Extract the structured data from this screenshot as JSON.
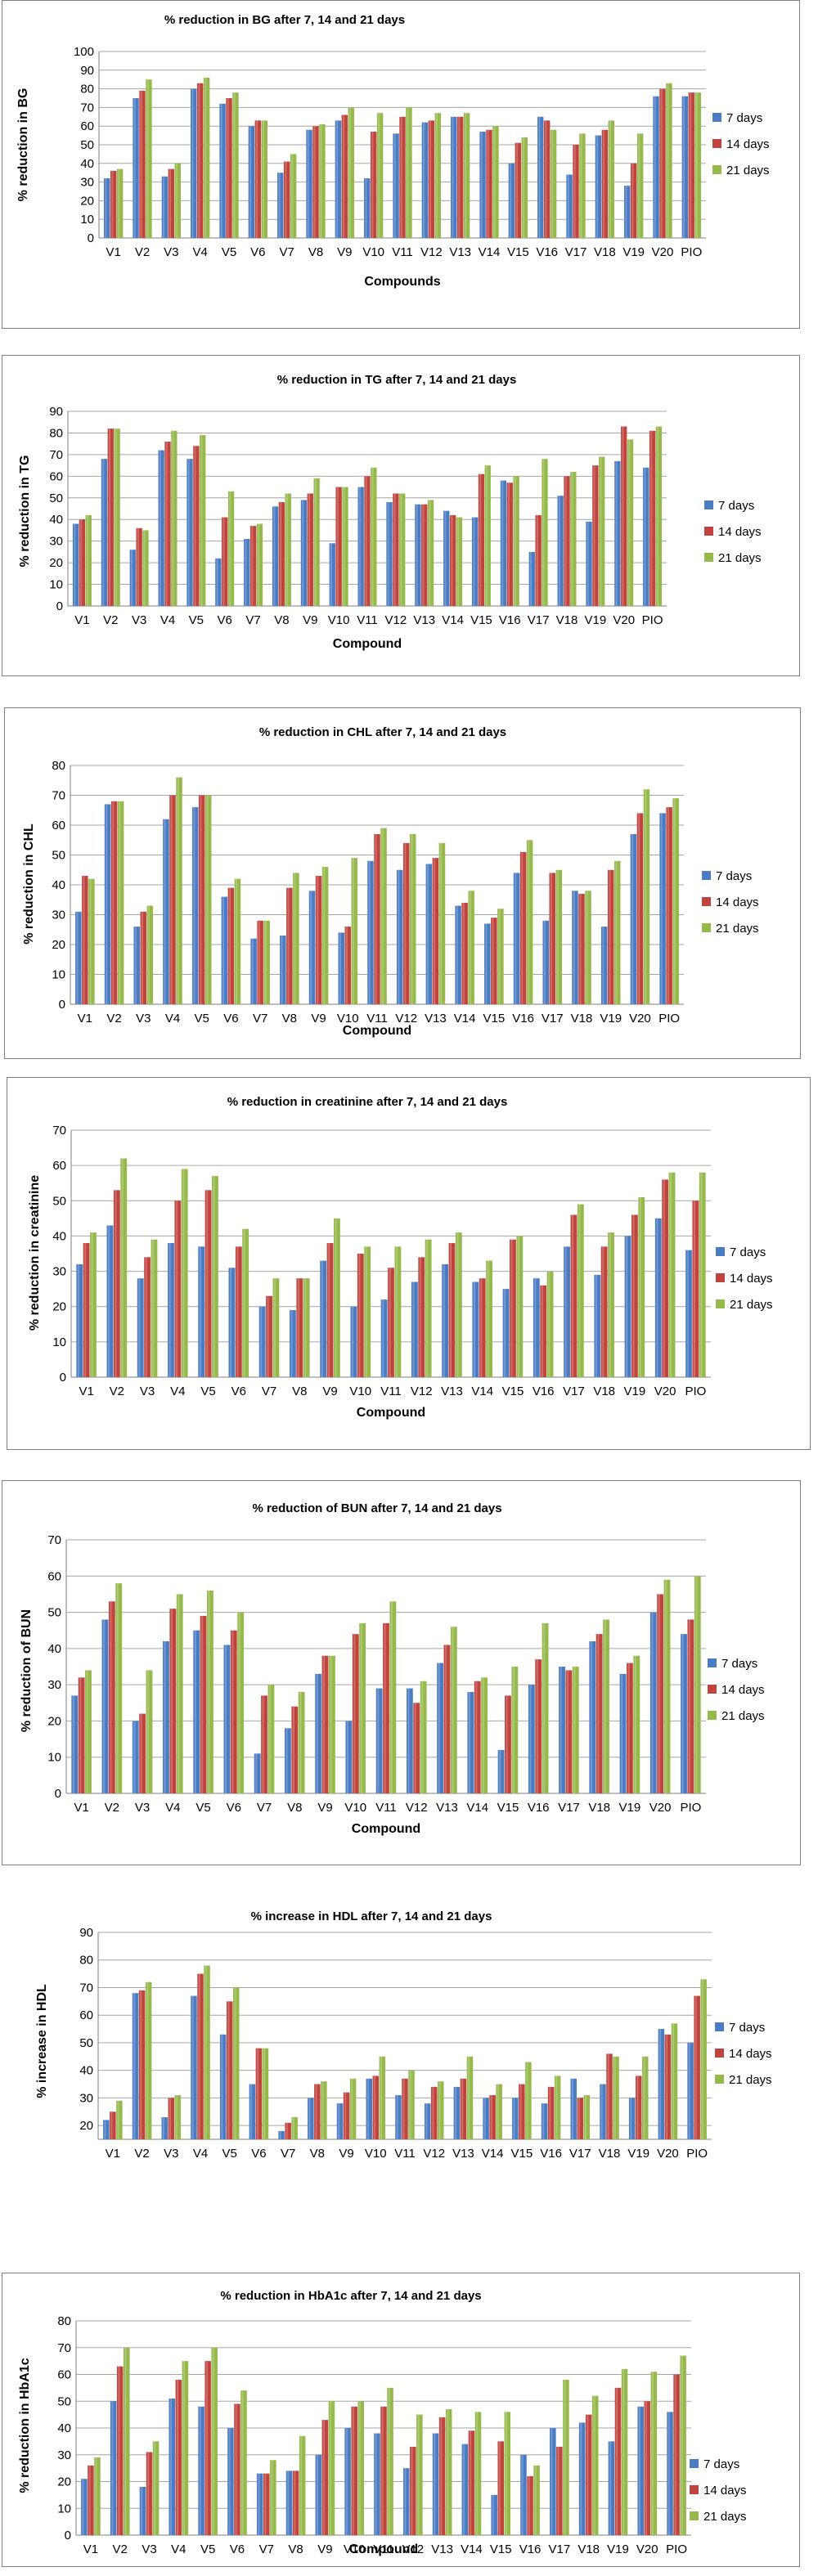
{
  "legend": [
    "7 days",
    "14 days",
    "21 days"
  ],
  "colors": {
    "series_7": "#4a7cc3",
    "series_14": "#c0433e",
    "series_21": "#95b94b"
  },
  "chart_data": [
    {
      "type": "bar",
      "title": "% reduction in BG after 7, 14 and 21 days",
      "xlabel": "Compounds",
      "ylabel": "% reduction in BG",
      "ylim": [
        0,
        100
      ],
      "ystep": 10,
      "legend_position": "right",
      "categories": [
        "V1",
        "V2",
        "V3",
        "V4",
        "V5",
        "V6",
        "V7",
        "V8",
        "V9",
        "V10",
        "V11",
        "V12",
        "V13",
        "V14",
        "V15",
        "V16",
        "V17",
        "V18",
        "V19",
        "V20",
        "PIO"
      ],
      "series": [
        {
          "name": "7 days",
          "values": [
            32,
            75,
            33,
            80,
            72,
            60,
            35,
            58,
            63,
            32,
            56,
            62,
            65,
            57,
            40,
            65,
            34,
            55,
            28,
            76,
            76
          ]
        },
        {
          "name": "14 days",
          "values": [
            36,
            79,
            37,
            83,
            75,
            63,
            41,
            60,
            66,
            57,
            65,
            63,
            65,
            58,
            51,
            63,
            50,
            58,
            40,
            80,
            78
          ]
        },
        {
          "name": "21 days",
          "values": [
            37,
            85,
            40,
            86,
            78,
            63,
            45,
            61,
            70,
            67,
            70,
            67,
            67,
            60,
            54,
            58,
            56,
            63,
            56,
            83,
            78
          ]
        }
      ]
    },
    {
      "type": "bar",
      "title": "% reduction in TG after 7, 14 and 21 days",
      "xlabel": "Compound",
      "ylabel": "% reduction in TG",
      "ylim": [
        0,
        90
      ],
      "ystep": 10,
      "legend_position": "right",
      "categories": [
        "V1",
        "V2",
        "V3",
        "V4",
        "V5",
        "V6",
        "V7",
        "V8",
        "V9",
        "V10",
        "V11",
        "V12",
        "V13",
        "V14",
        "V15",
        "V16",
        "V17",
        "V18",
        "V19",
        "V20",
        "PIO"
      ],
      "series": [
        {
          "name": "7 days",
          "values": [
            38,
            68,
            26,
            72,
            68,
            22,
            31,
            46,
            49,
            29,
            55,
            48,
            47,
            44,
            41,
            58,
            25,
            51,
            39,
            67,
            64
          ]
        },
        {
          "name": "14 days",
          "values": [
            40,
            82,
            36,
            76,
            74,
            41,
            37,
            48,
            52,
            55,
            60,
            52,
            47,
            42,
            61,
            57,
            42,
            60,
            65,
            83,
            81
          ]
        },
        {
          "name": "21 days",
          "values": [
            42,
            82,
            35,
            81,
            79,
            53,
            38,
            52,
            59,
            55,
            64,
            52,
            49,
            41,
            65,
            60,
            68,
            62,
            69,
            77,
            83
          ]
        }
      ]
    },
    {
      "type": "bar",
      "title": "% reduction in CHL after 7, 14 and 21 days",
      "xlabel": "Compound",
      "ylabel": "% reduction in CHL",
      "ylim": [
        0,
        80
      ],
      "ystep": 10,
      "legend_position": "right",
      "categories": [
        "V1",
        "V2",
        "V3",
        "V4",
        "V5",
        "V6",
        "V7",
        "V8",
        "V9",
        "V10",
        "V11",
        "V12",
        "V13",
        "V14",
        "V15",
        "V16",
        "V17",
        "V18",
        "V19",
        "V20",
        "PIO"
      ],
      "series": [
        {
          "name": "7 days",
          "values": [
            31,
            67,
            26,
            62,
            66,
            36,
            22,
            23,
            38,
            24,
            48,
            45,
            47,
            33,
            27,
            44,
            28,
            38,
            26,
            57,
            64
          ]
        },
        {
          "name": "14 days",
          "values": [
            43,
            68,
            31,
            70,
            70,
            39,
            28,
            39,
            43,
            26,
            57,
            54,
            49,
            34,
            29,
            51,
            44,
            37,
            45,
            64,
            66
          ]
        },
        {
          "name": "21 days",
          "values": [
            42,
            68,
            33,
            76,
            70,
            42,
            28,
            44,
            46,
            49,
            59,
            57,
            54,
            38,
            32,
            55,
            45,
            38,
            48,
            72,
            69
          ]
        }
      ]
    },
    {
      "type": "bar",
      "title": "% reduction in creatinine after 7, 14 and 21 days",
      "xlabel": "Compound",
      "ylabel": "% reduction in creatinine",
      "ylim": [
        0,
        70
      ],
      "ystep": 10,
      "legend_position": "right",
      "categories": [
        "V1",
        "V2",
        "V3",
        "V4",
        "V5",
        "V6",
        "V7",
        "V8",
        "V9",
        "V10",
        "V11",
        "V12",
        "V13",
        "V14",
        "V15",
        "V16",
        "V17",
        "V18",
        "V19",
        "V20",
        "PIO"
      ],
      "series": [
        {
          "name": "7 days",
          "values": [
            32,
            43,
            28,
            38,
            37,
            31,
            20,
            19,
            33,
            20,
            22,
            27,
            32,
            27,
            25,
            28,
            37,
            29,
            40,
            45,
            36
          ]
        },
        {
          "name": "14 days",
          "values": [
            38,
            53,
            34,
            50,
            53,
            37,
            23,
            28,
            38,
            35,
            31,
            34,
            38,
            28,
            39,
            26,
            46,
            37,
            46,
            56,
            50
          ]
        },
        {
          "name": "21 days",
          "values": [
            41,
            62,
            39,
            59,
            57,
            42,
            28,
            28,
            45,
            37,
            37,
            39,
            41,
            33,
            40,
            30,
            49,
            41,
            51,
            58,
            58
          ]
        }
      ]
    },
    {
      "type": "bar",
      "title": "% reduction of BUN after 7, 14 and 21 days",
      "xlabel": "Compound",
      "ylabel": "% reduction of BUN",
      "ylim": [
        0,
        70
      ],
      "ystep": 10,
      "legend_position": "right",
      "categories": [
        "V1",
        "V2",
        "V3",
        "V4",
        "V5",
        "V6",
        "V7",
        "V8",
        "V9",
        "V10",
        "V11",
        "V12",
        "V13",
        "V14",
        "V15",
        "V16",
        "V17",
        "V18",
        "V19",
        "V20",
        "PIO"
      ],
      "series": [
        {
          "name": "7 days",
          "values": [
            27,
            48,
            20,
            42,
            45,
            41,
            11,
            18,
            33,
            20,
            29,
            29,
            36,
            28,
            12,
            30,
            35,
            42,
            33,
            50,
            44
          ]
        },
        {
          "name": "14 days",
          "values": [
            32,
            53,
            22,
            51,
            49,
            45,
            27,
            24,
            38,
            44,
            47,
            25,
            41,
            31,
            27,
            37,
            34,
            44,
            36,
            55,
            48
          ]
        },
        {
          "name": "21 days",
          "values": [
            34,
            58,
            34,
            55,
            56,
            50,
            30,
            28,
            38,
            47,
            53,
            31,
            46,
            32,
            35,
            47,
            35,
            48,
            38,
            59,
            60
          ]
        }
      ]
    },
    {
      "type": "bar",
      "title": "% increase in HDL after 7, 14 and 21 days",
      "xlabel": "",
      "ylabel": "% increase in HDL",
      "ylim": [
        15,
        90
      ],
      "ystep": 10,
      "yticks": [
        20,
        30,
        40,
        50,
        60,
        70,
        80,
        90
      ],
      "legend_position": "right",
      "categories": [
        "V1",
        "V2",
        "V3",
        "V4",
        "V5",
        "V6",
        "V7",
        "V8",
        "V9",
        "V10",
        "V11",
        "V12",
        "V13",
        "V14",
        "V15",
        "V16",
        "V17",
        "V18",
        "V19",
        "V20",
        "PIO"
      ],
      "series": [
        {
          "name": "7 days",
          "values": [
            22,
            68,
            23,
            67,
            53,
            35,
            18,
            30,
            28,
            37,
            31,
            28,
            34,
            30,
            30,
            28,
            37,
            35,
            30,
            55,
            50
          ]
        },
        {
          "name": "14 days",
          "values": [
            25,
            69,
            30,
            75,
            65,
            48,
            21,
            35,
            32,
            38,
            37,
            34,
            37,
            31,
            35,
            34,
            30,
            46,
            38,
            53,
            67
          ]
        },
        {
          "name": "21 days",
          "values": [
            29,
            72,
            31,
            78,
            70,
            48,
            23,
            36,
            37,
            45,
            40,
            36,
            45,
            35,
            43,
            38,
            31,
            45,
            45,
            57,
            73
          ]
        }
      ]
    },
    {
      "type": "bar",
      "title": "% reduction in HbA1c after 7, 14 and 21 days",
      "xlabel": "Compound",
      "ylabel": "% reduction in HbA1c",
      "ylim": [
        0,
        80
      ],
      "ystep": 10,
      "legend_position": "right",
      "categories": [
        "V1",
        "V2",
        "V3",
        "V4",
        "V5",
        "V6",
        "V7",
        "V8",
        "V9",
        "V10",
        "V11",
        "V12",
        "V13",
        "V14",
        "V15",
        "V16",
        "V17",
        "V18",
        "V19",
        "V20",
        "PIO"
      ],
      "series": [
        {
          "name": "7 days",
          "values": [
            21,
            50,
            18,
            51,
            48,
            40,
            23,
            24,
            30,
            40,
            38,
            25,
            38,
            34,
            15,
            30,
            40,
            42,
            35,
            48,
            46
          ]
        },
        {
          "name": "14 days",
          "values": [
            26,
            63,
            31,
            58,
            65,
            49,
            23,
            24,
            43,
            48,
            48,
            33,
            44,
            39,
            35,
            22,
            33,
            45,
            55,
            50,
            60
          ]
        },
        {
          "name": "21 days",
          "values": [
            29,
            70,
            35,
            65,
            70,
            54,
            28,
            37,
            50,
            50,
            55,
            45,
            47,
            46,
            46,
            26,
            58,
            52,
            62,
            61,
            67
          ]
        }
      ]
    }
  ]
}
